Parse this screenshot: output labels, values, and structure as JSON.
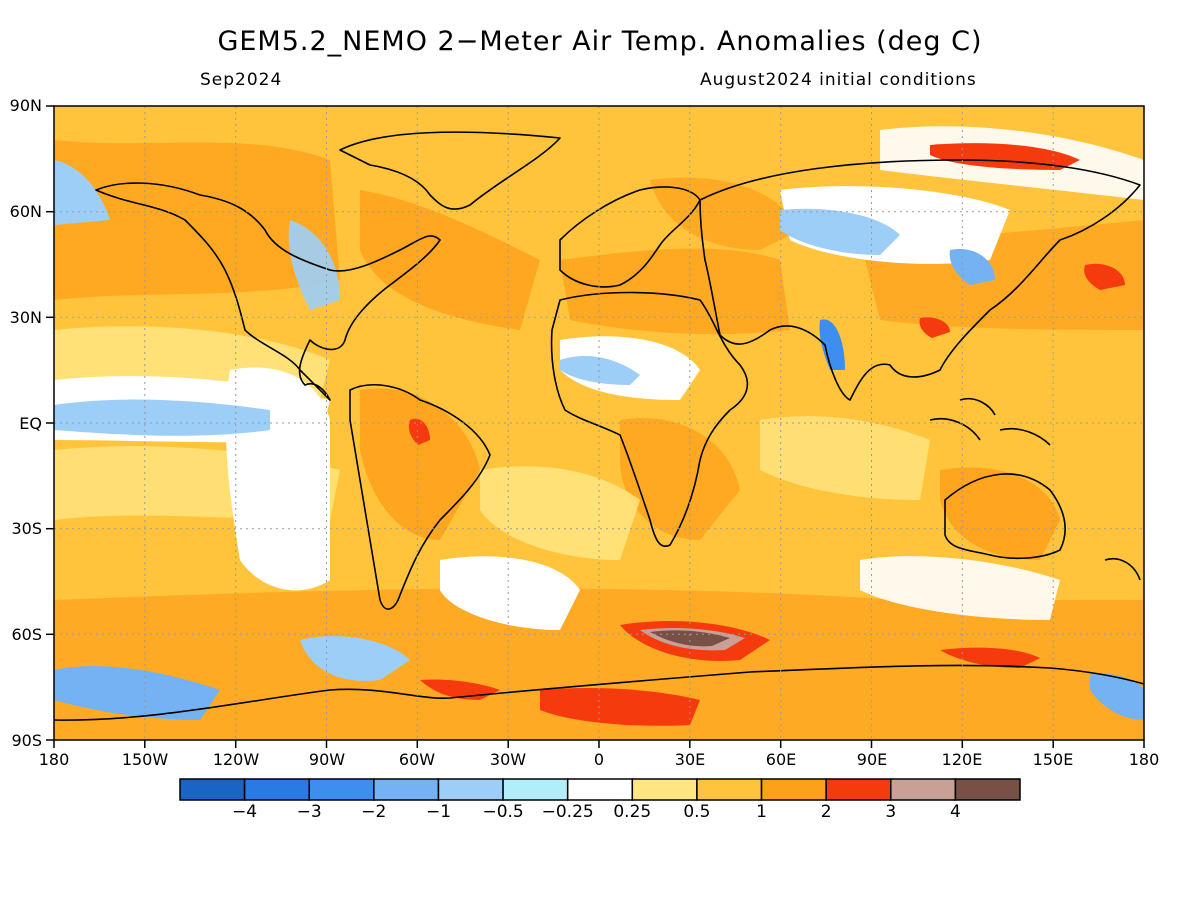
{
  "title": "GEM5.2_NEMO 2−Meter Air Temp. Anomalies (deg C)",
  "valid_month": "Sep2024",
  "init_conditions": "August2024 initial conditions",
  "lat_labels": [
    "90N",
    "60N",
    "30N",
    "EQ",
    "30S",
    "60S",
    "90S"
  ],
  "lon_labels": [
    "180",
    "150W",
    "120W",
    "90W",
    "60W",
    "30W",
    "0",
    "30E",
    "60E",
    "90E",
    "120E",
    "150E",
    "180"
  ],
  "colorbar": {
    "colors": [
      "#1a64c8",
      "#2a7ae6",
      "#3e8ef0",
      "#74b2f4",
      "#9ccef8",
      "#b2eefa",
      "#ffffff",
      "#ffe682",
      "#ffc43c",
      "#ffa01a",
      "#f53a0e",
      "#c8a096",
      "#785046"
    ],
    "labels": [
      "−4",
      "−3",
      "−2",
      "−1",
      "−0.5",
      "−0.25",
      "0.25",
      "0.5",
      "1",
      "2",
      "3",
      "4"
    ]
  }
}
